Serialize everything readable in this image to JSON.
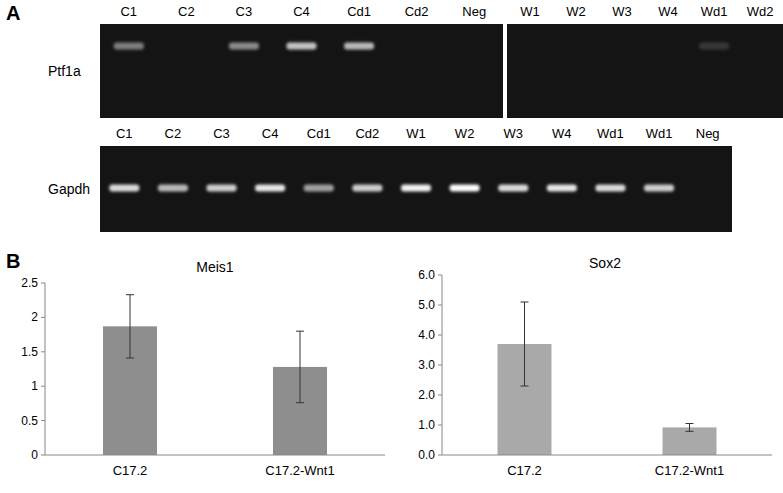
{
  "panel_labels": [
    "A",
    "B"
  ],
  "gels": [
    {
      "label": "Ptf1a",
      "groups": [
        [
          {
            "name": "C1",
            "band": 0.45
          },
          {
            "name": "C2",
            "band": 0
          },
          {
            "name": "C3",
            "band": 0.5
          },
          {
            "name": "C4",
            "band": 0.75
          },
          {
            "name": "Cd1",
            "band": 0.7
          },
          {
            "name": "Cd2",
            "band": 0
          },
          {
            "name": "Neg",
            "band": 0
          }
        ],
        [
          {
            "name": "W1",
            "band": 0
          },
          {
            "name": "W2",
            "band": 0
          },
          {
            "name": "W3",
            "band": 0
          },
          {
            "name": "W4",
            "band": 0
          },
          {
            "name": "Wd1",
            "band": 0.15
          },
          {
            "name": "Wd2",
            "band": 0
          }
        ]
      ]
    },
    {
      "label": "Gapdh",
      "groups": [
        [
          {
            "name": "C1",
            "band": 0.85
          },
          {
            "name": "C2",
            "band": 0.7
          },
          {
            "name": "C3",
            "band": 0.8
          },
          {
            "name": "C4",
            "band": 0.9
          },
          {
            "name": "Cd1",
            "band": 0.6
          },
          {
            "name": "Cd2",
            "band": 0.8
          },
          {
            "name": "W1",
            "band": 0.95
          },
          {
            "name": "W2",
            "band": 1
          },
          {
            "name": "W3",
            "band": 0.85
          },
          {
            "name": "W4",
            "band": 0.9
          },
          {
            "name": "Wd1",
            "band": 0.85
          },
          {
            "name": "Wd1",
            "band": 0.8
          },
          {
            "name": "Neg",
            "band": 0
          }
        ]
      ]
    }
  ],
  "chart_data": [
    {
      "type": "bar",
      "title": "Meis1",
      "categories": [
        "C17.2",
        "C17.2-Wnt1"
      ],
      "values": [
        1.87,
        1.28
      ],
      "errors": [
        0.46,
        0.52
      ],
      "color": "#8e8e8e",
      "ylim": [
        0,
        2.5
      ],
      "yticks": [
        0,
        0.5,
        1,
        1.5,
        2,
        2.5
      ],
      "grid": false
    },
    {
      "type": "bar",
      "title": "Sox2",
      "categories": [
        "C17.2",
        "C17.2-Wnt1"
      ],
      "values": [
        3.7,
        0.92
      ],
      "errors": [
        1.4,
        0.13
      ],
      "color": "#a9a9a9",
      "ylim": [
        0,
        6
      ],
      "yticks": [
        {
          "value": 0,
          "label": "0.0"
        },
        {
          "value": 1,
          "label": "1.0"
        },
        {
          "value": 2,
          "label": "2.0"
        },
        {
          "value": 3,
          "label": "3.0"
        },
        {
          "value": 4,
          "label": "4.0"
        },
        {
          "value": 5,
          "label": "5.0"
        },
        {
          "value": 6,
          "label": "6.0"
        }
      ],
      "grid": false
    }
  ]
}
